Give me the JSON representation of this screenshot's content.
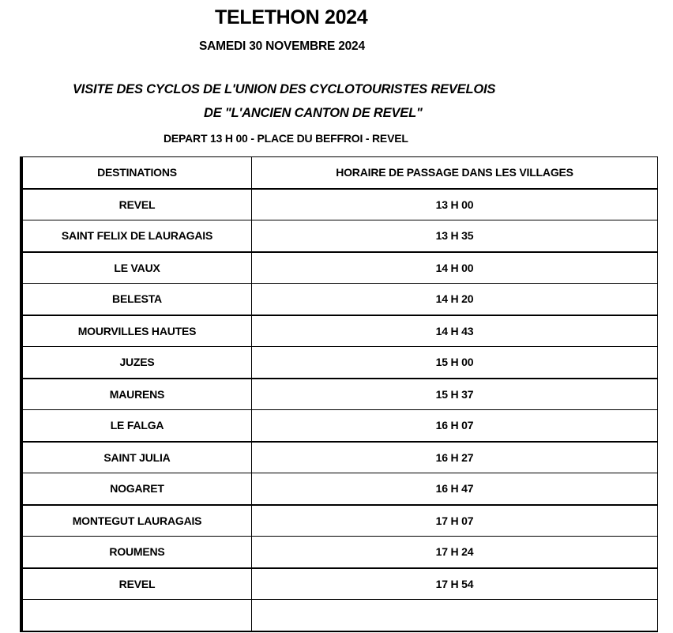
{
  "header": {
    "title": "TELETHON 2024",
    "date": "SAMEDI 30 NOVEMBRE 2024",
    "line1": "VISITE DES CYCLOS DE L'UNION DES CYCLOTOURISTES REVELOIS",
    "line2": "DE \"L'ANCIEN CANTON DE REVEL\"",
    "departure": "DEPART 13 H 00 - PLACE DU BEFFROI - REVEL"
  },
  "table": {
    "columns": [
      "DESTINATIONS",
      "HORAIRE DE PASSAGE DANS LES VILLAGES"
    ],
    "rows": [
      [
        "REVEL",
        "13 H 00"
      ],
      [
        "SAINT FELIX DE LAURAGAIS",
        "13 H 35"
      ],
      [
        "LE VAUX",
        "14 H 00"
      ],
      [
        "BELESTA",
        "14 H 20"
      ],
      [
        "MOURVILLES HAUTES",
        "14 H 43"
      ],
      [
        "JUZES",
        "15 H 00"
      ],
      [
        "MAURENS",
        "15 H 37"
      ],
      [
        "LE FALGA",
        "16 H 07"
      ],
      [
        "SAINT JULIA",
        "16 H 27"
      ],
      [
        "NOGARET",
        "16 H 47"
      ],
      [
        "MONTEGUT LAURAGAIS",
        "17 H 07"
      ],
      [
        "ROUMENS",
        "17 H 24"
      ],
      [
        "REVEL",
        "17 H 54"
      ],
      [
        "",
        ""
      ]
    ]
  }
}
